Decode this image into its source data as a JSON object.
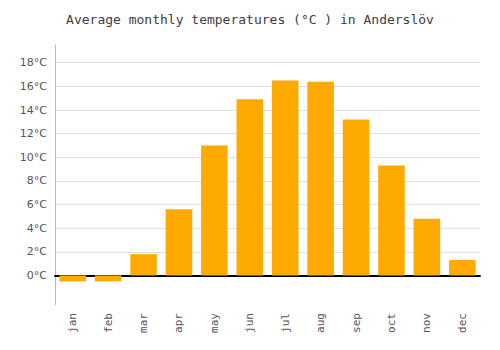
{
  "chart_data": {
    "type": "bar",
    "title": "Average monthly temperatures (°C ) in Anderslöv",
    "categories": [
      "jan",
      "feb",
      "mar",
      "apr",
      "may",
      "jun",
      "jul",
      "aug",
      "sep",
      "oct",
      "nov",
      "dec"
    ],
    "values": [
      -0.5,
      -0.5,
      1.8,
      5.6,
      11.0,
      14.9,
      16.5,
      16.4,
      13.2,
      9.3,
      4.8,
      1.3
    ],
    "color": "#FFAA00",
    "ylim": [
      -2.5,
      19.5
    ],
    "yticks": [
      {
        "value": 0,
        "label": "0°C"
      },
      {
        "value": 2,
        "label": "2°C"
      },
      {
        "value": 4,
        "label": "4°C"
      },
      {
        "value": 6,
        "label": "6°C"
      },
      {
        "value": 8,
        "label": "8°C"
      },
      {
        "value": 10,
        "label": "10°C"
      },
      {
        "value": 12,
        "label": "12°C"
      },
      {
        "value": 14,
        "label": "14°C"
      },
      {
        "value": 16,
        "label": "16°C"
      },
      {
        "value": 18,
        "label": "18°C"
      }
    ],
    "grid": true
  }
}
